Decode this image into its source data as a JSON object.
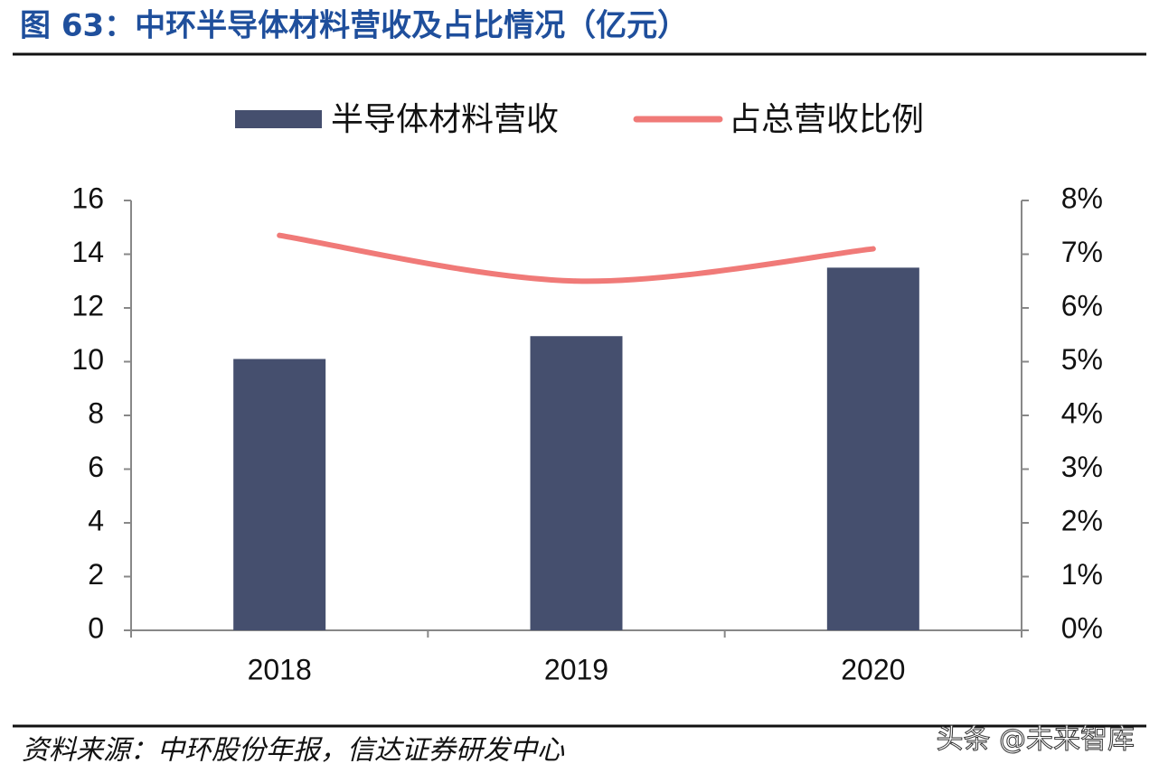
{
  "title": "图 63：中环半导体材料营收及占比情况（亿元）",
  "source": "资料来源：中环股份年报，信达证券研发中心",
  "watermark": "头条 @未来智库",
  "chart_data": {
    "type": "bar",
    "categories": [
      "2018",
      "2019",
      "2020"
    ],
    "series": [
      {
        "name": "半导体材料营收",
        "type": "bar",
        "color": "#454f6e",
        "values": [
          10.1,
          10.95,
          13.5
        ]
      },
      {
        "name": "占总营收比例",
        "type": "line",
        "color": "#f07a78",
        "axis": "y2",
        "values": [
          7.35,
          6.5,
          7.1
        ]
      }
    ],
    "ylim": [
      0,
      16
    ],
    "yticks": [
      0,
      2,
      4,
      6,
      8,
      10,
      12,
      14,
      16
    ],
    "y2lim": [
      0,
      8
    ],
    "y2ticks": [
      {
        "value": 0,
        "label": "0%"
      },
      {
        "value": 1,
        "label": "1%"
      },
      {
        "value": 2,
        "label": "2%"
      },
      {
        "value": 3,
        "label": "3%"
      },
      {
        "value": 4,
        "label": "4%"
      },
      {
        "value": 5,
        "label": "5%"
      },
      {
        "value": 6,
        "label": "6%"
      },
      {
        "value": 7,
        "label": "7%"
      },
      {
        "value": 8,
        "label": "8%"
      }
    ],
    "legend": "top"
  }
}
